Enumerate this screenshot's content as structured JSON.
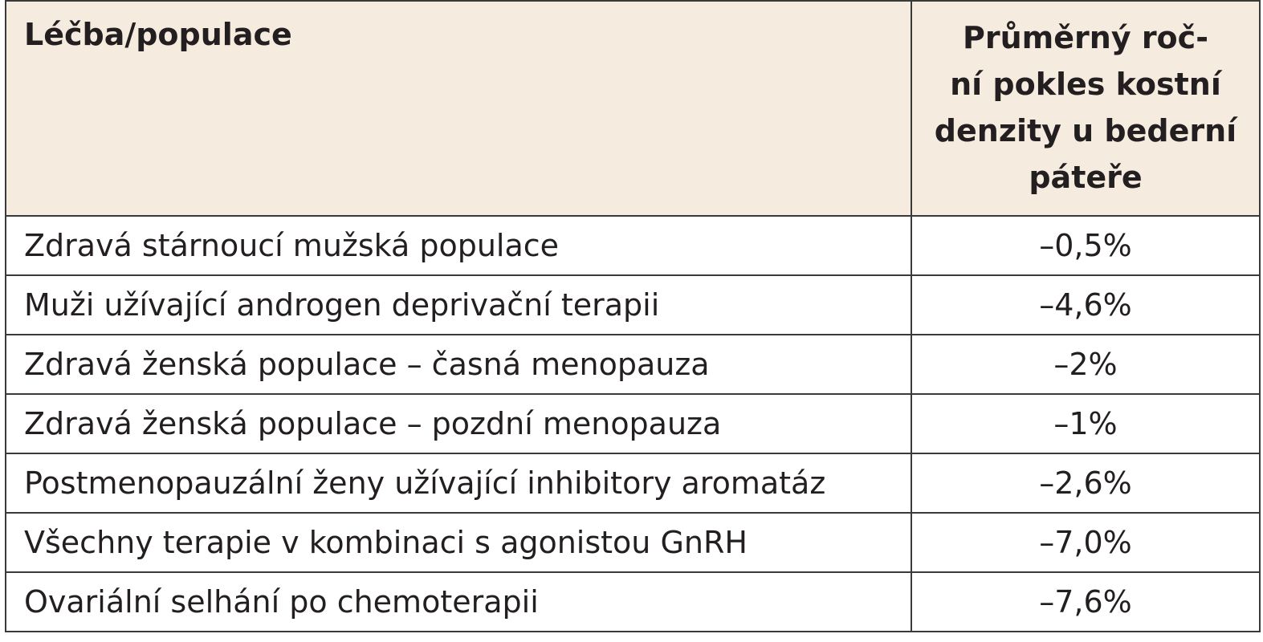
{
  "table": {
    "header": {
      "population": "Léčba/populace",
      "decline_lines": [
        "Průměrný roč-",
        "ní pokles kostní",
        "denzity u bederní",
        "páteře"
      ]
    },
    "rows": [
      {
        "population": "Zdravá stárnoucí mužská populace",
        "value": "–0,5%"
      },
      {
        "population": "Muži užívající androgen deprivační terapii",
        "value": "–4,6%"
      },
      {
        "population": "Zdravá ženská populace – časná menopauza",
        "value": "–2%"
      },
      {
        "population": "Zdravá ženská populace – pozdní menopauza",
        "value": "–1%"
      },
      {
        "population": "Postmenopauzální ženy užívající inhibitory aromatáz",
        "value": "–2,6%"
      },
      {
        "population": "Všechny terapie v kombinaci s agonistou GnRH",
        "value": "–7,0%"
      },
      {
        "population": "Ovariální selhání po chemoterapii",
        "value": "–7,6%"
      }
    ],
    "colors": {
      "header_background": "#f6ebdf",
      "border": "#3a3a3a",
      "text": "#231f20"
    }
  }
}
